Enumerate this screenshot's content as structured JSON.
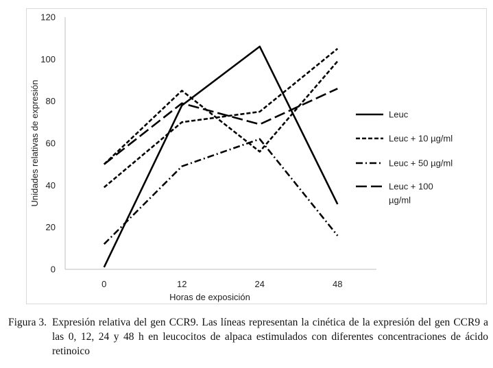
{
  "chart_data": {
    "type": "line",
    "categories": [
      "0",
      "12",
      "24",
      "48"
    ],
    "xlabel": "Horas de exposición",
    "ylabel": "Unidades relativas de expresión",
    "ylim": [
      0,
      120
    ],
    "yticks": [
      0,
      20,
      40,
      60,
      80,
      100,
      120
    ],
    "grid": false,
    "legend_position": "right",
    "series": [
      {
        "name": "Leuc",
        "values": [
          1,
          78,
          106,
          31
        ],
        "dash": "solid",
        "color": "#000000"
      },
      {
        "name": "Leuc + 10 µg/ml",
        "values": [
          39,
          70,
          75,
          105
        ],
        "dash": "short-dash",
        "color": "#000000"
      },
      {
        "name": "Leuc + 50 µg/ml",
        "values": [
          12,
          49,
          62,
          16
        ],
        "dash": "dash-dot",
        "color": "#000000"
      },
      {
        "name": "Leuc + 100 µg/ml",
        "values": [
          50,
          79,
          69,
          86
        ],
        "dash": "long-dash",
        "color": "#000000"
      },
      {
        "name": "",
        "values": [
          50,
          85,
          56,
          99
        ],
        "dash": "short-dash",
        "color": "#000000"
      }
    ],
    "legend": [
      {
        "lines": [
          "Leuc"
        ]
      },
      {
        "lines": [
          "Leuc + 10 µg/ml"
        ]
      },
      {
        "lines": [
          "Leuc + 50 µg/ml"
        ]
      },
      {
        "lines": [
          "Leuc + 100",
          "µg/ml"
        ]
      }
    ]
  },
  "caption": {
    "label": "Figura 3.",
    "text": "Expresión relativa del gen CCR9. Las líneas representan la cinética de la expresión del gen CCR9 a las 0, 12, 24 y 48 h en leucocitos de alpaca estimulados con diferentes concentraciones de ácido retinoico"
  }
}
